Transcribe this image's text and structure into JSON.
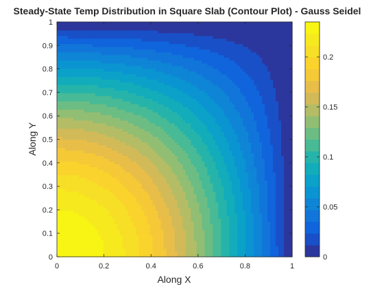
{
  "chart_data": {
    "type": "contour",
    "title": "Steady-State Temp Distribution in Square Slab (Contour Plot) - Gauss Seidel",
    "xlabel": "Along X",
    "ylabel": "Along Y",
    "xlim": [
      0,
      1
    ],
    "ylim": [
      0,
      1
    ],
    "xticks": [
      "0",
      "0.2",
      "0.4",
      "0.6",
      "0.8",
      "1"
    ],
    "yticks": [
      "0",
      "0.1",
      "0.2",
      "0.3",
      "0.4",
      "0.5",
      "0.6",
      "0.7",
      "0.8",
      "0.9",
      "1"
    ],
    "colorbar": {
      "range": [
        0,
        0.235
      ],
      "ticks": [
        "0",
        "0.05",
        "0.1",
        "0.15",
        "0.2"
      ],
      "colormap": "parula"
    },
    "contour_levels": 20,
    "field_max": 0.235,
    "field_max_location": "bottom-left (x≈0, y≈0)",
    "field_min_location": "top and right edges (value 0)",
    "grid": false
  }
}
